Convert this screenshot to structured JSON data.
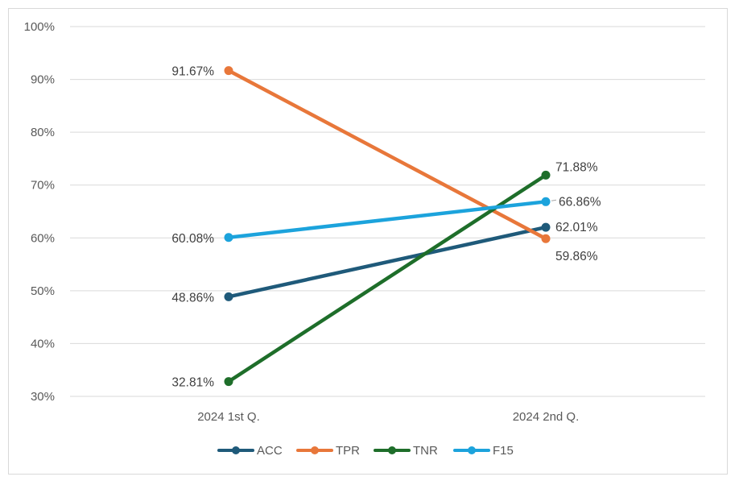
{
  "chart_data": {
    "type": "line",
    "categories": [
      "2024 1st Q.",
      "2024 2nd Q."
    ],
    "series": [
      {
        "name": "ACC",
        "values": [
          48.86,
          62.01
        ],
        "labels": [
          "48.86%",
          "62.01%"
        ],
        "color": "#1f5a7a"
      },
      {
        "name": "TPR",
        "values": [
          91.67,
          59.86
        ],
        "labels": [
          "91.67%",
          "59.86%"
        ],
        "color": "#e8773a"
      },
      {
        "name": "TNR",
        "values": [
          32.81,
          71.88
        ],
        "labels": [
          "32.81%",
          "71.88%"
        ],
        "color": "#1e6e2a"
      },
      {
        "name": "F15",
        "values": [
          60.08,
          66.86
        ],
        "labels": [
          "60.08%",
          "66.86%"
        ],
        "color": "#1ca3dc"
      }
    ],
    "y_ticks": [
      30,
      40,
      50,
      60,
      70,
      80,
      90,
      100
    ],
    "y_tick_labels": [
      "30%",
      "40%",
      "50%",
      "60%",
      "70%",
      "80%",
      "90%",
      "100%"
    ],
    "ylim": [
      30,
      100
    ],
    "grid": true,
    "legend": "bottom",
    "title": "",
    "xlabel": "",
    "ylabel": ""
  }
}
